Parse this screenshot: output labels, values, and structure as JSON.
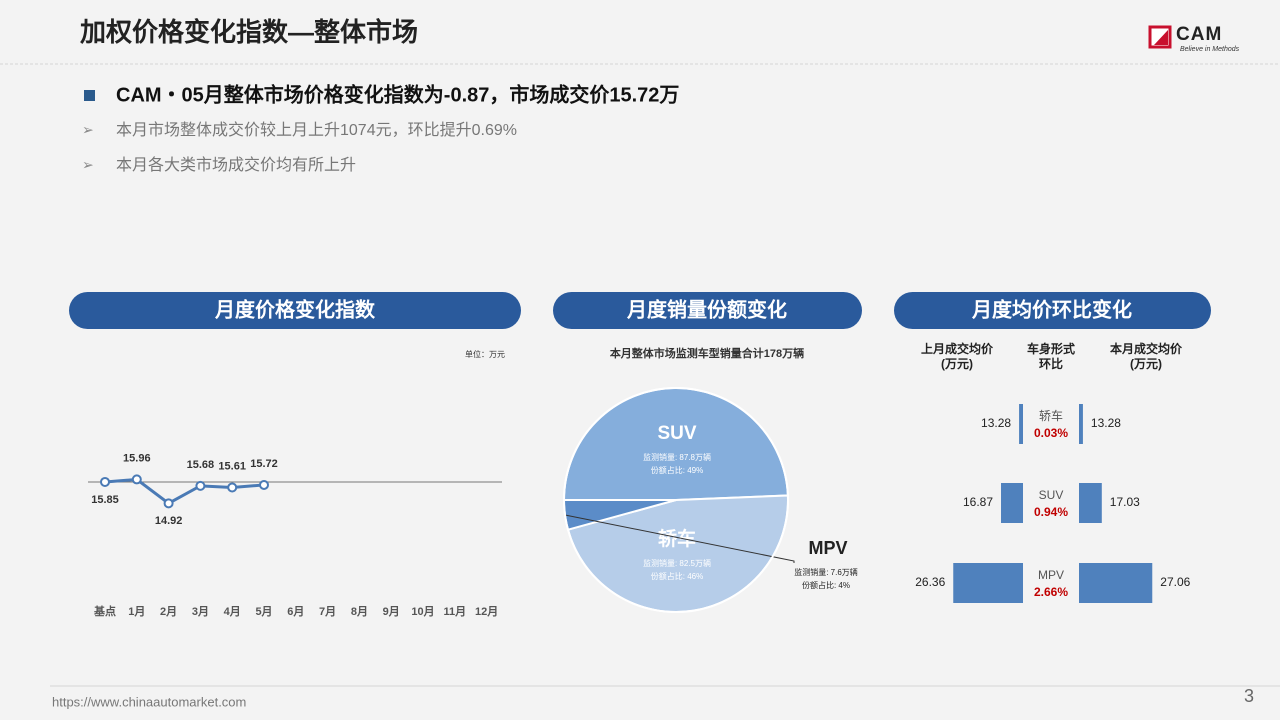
{
  "title": "加权价格变化指数—整体市场",
  "logo": {
    "name": "CAM",
    "tagline": "Believe in Methods"
  },
  "headline": "CAM・05月整体市场价格变化指数为-0.87，市场成交价15.72万",
  "bullets": [
    "本月市场整体成交价较上月上升1074元，环比提升0.69%",
    "本月各大类市场成交价均有所上升"
  ],
  "footer": {
    "url": "https://www.chinaautomarket.com",
    "page": "3"
  },
  "chart_data": [
    {
      "type": "line",
      "title": "月度价格变化指数",
      "unit": "单位：万元",
      "categories": [
        "基点",
        "1月",
        "2月",
        "3月",
        "4月",
        "5月",
        "6月",
        "7月",
        "8月",
        "9月",
        "10月",
        "11月",
        "12月"
      ],
      "values": [
        15.85,
        15.96,
        14.92,
        15.68,
        15.61,
        15.72,
        null,
        null,
        null,
        null,
        null,
        null,
        null
      ],
      "ylim": [
        10,
        20
      ],
      "color": "#4a7ab5"
    },
    {
      "type": "pie",
      "title": "月度销量份额变化",
      "subtitle": "本月整体市场监测车型销量合计178万辆",
      "categories": [
        "SUV",
        "轿车",
        "MPV"
      ],
      "values": [
        87.8,
        82.5,
        7.6
      ],
      "value_labels": [
        "监测销量: 87.8万辆",
        "监测销量: 82.5万辆",
        "监测销量: 7.6万辆"
      ],
      "share_values": [
        49,
        46,
        4
      ],
      "share_labels": [
        "份额占比: 49%",
        "份额占比: 46%",
        "份额占比: 4%"
      ],
      "colors": [
        "#85aedc",
        "#b6cde9",
        "#5b8cc8"
      ]
    },
    {
      "type": "butterfly",
      "title": "月度均价环比变化",
      "categories": [
        "轿车",
        "SUV",
        "MPV"
      ],
      "change_title": "车身形式\n环比",
      "series": [
        {
          "name": "上月成交均价\n(万元)",
          "color": "#4f81bd",
          "values": [
            13.28,
            16.87,
            26.36
          ]
        },
        {
          "name": "本月成交均价\n(万元)",
          "color": "#4f81bd",
          "values": [
            13.28,
            17.03,
            27.06
          ]
        }
      ],
      "change": [
        0.03,
        0.94,
        2.66
      ],
      "change_labels": [
        "0.03%",
        "0.94%",
        "2.66%"
      ],
      "xlim": [
        12.5,
        28
      ]
    }
  ]
}
